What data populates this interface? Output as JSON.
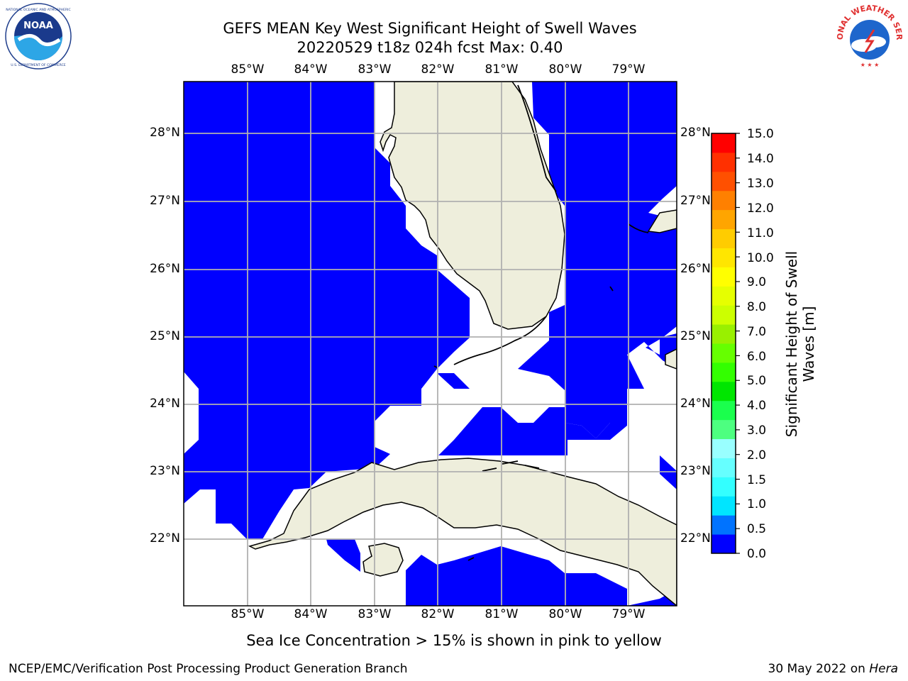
{
  "header": {
    "title_line1": "GEFS MEAN Key West Significant Height of Swell Waves",
    "title_line2": "20220529 t18z 024h fcst   Max: 0.40"
  },
  "logos": {
    "left": {
      "text": "NOAA",
      "ring_text": "NATIONAL OCEANIC AND ATMOSPHERIC ADMINISTRATION · U.S. DEPARTMENT OF COMMERCE",
      "icon": "noaa-logo-icon"
    },
    "right": {
      "ring_text": "NATIONAL WEATHER SERVICE",
      "icon": "nws-logo-icon"
    }
  },
  "map": {
    "lon_ticks": [
      "85°W",
      "84°W",
      "83°W",
      "82°W",
      "81°W",
      "80°W",
      "79°W"
    ],
    "lat_ticks": [
      "28°N",
      "27°N",
      "26°N",
      "25°N",
      "24°N",
      "23°N",
      "22°N"
    ],
    "colors": {
      "swell": "#0000ff",
      "land": "#eeeedc",
      "grid": "#b0b0b0",
      "no_data": "#ffffff"
    }
  },
  "colorbar": {
    "title": "Significant Height of Swell Waves [m]",
    "labels": [
      "15.0",
      "14.0",
      "13.0",
      "12.0",
      "11.0",
      "10.0",
      "9.0",
      "8.0",
      "7.0",
      "6.0",
      "5.0",
      "4.0",
      "3.0",
      "2.0",
      "1.5",
      "1.0",
      "0.5",
      "0.0"
    ],
    "colors_bottom_to_top": [
      "#0000ff",
      "#0073ff",
      "#00e5ff",
      "#33ffff",
      "#66ffff",
      "#99ffff",
      "#4dff80",
      "#1aff4d",
      "#00e600",
      "#33ff00",
      "#66ff00",
      "#99f000",
      "#ccff00",
      "#e6ff00",
      "#ffff00",
      "#ffe600",
      "#ffcc00",
      "#ffa500",
      "#ff8000",
      "#ff5000",
      "#ff3000",
      "#ff0000"
    ]
  },
  "footnote": "Sea Ice Concentration > 15% is shown in pink to yellow",
  "footer": {
    "left": "NCEP/EMC/Verification Post Processing Product Generation Branch",
    "right_date": "30 May 2022 on",
    "right_host": "Hera"
  }
}
